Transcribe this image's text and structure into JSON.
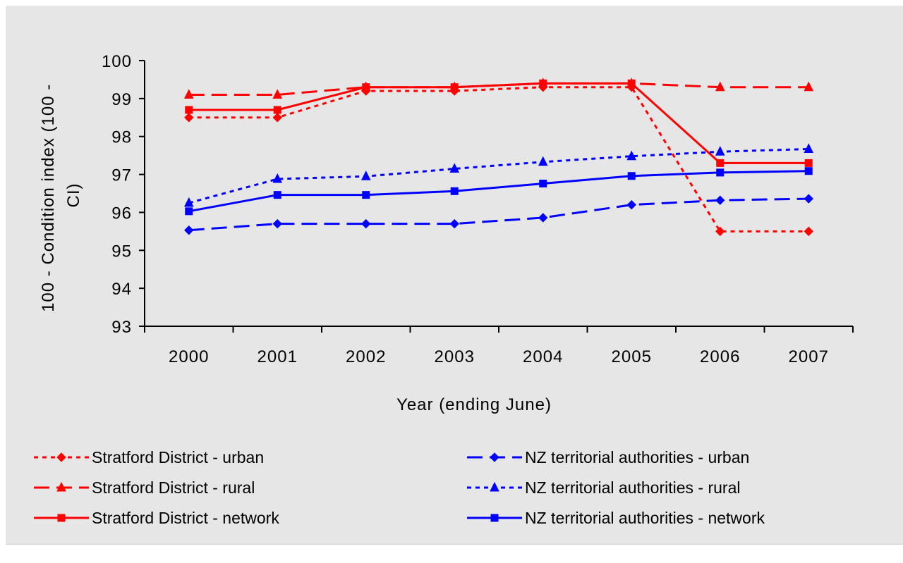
{
  "chart_data": {
    "type": "line",
    "title": "",
    "xlabel": "Year (ending June)",
    "ylabel_lines": [
      "100 - Condition index  (100 -",
      "CI)"
    ],
    "x": [
      "2000",
      "2001",
      "2002",
      "2003",
      "2004",
      "2005",
      "2006",
      "2007"
    ],
    "yticks": [
      93,
      94,
      95,
      96,
      97,
      98,
      99,
      100
    ],
    "ylim": [
      93,
      100
    ],
    "grid": false,
    "legend_position": "bottom",
    "series": [
      {
        "name": "Stratford District - urban",
        "color": "#ff0000",
        "dash": "dotted",
        "marker": "diamond",
        "values": [
          98.5,
          98.5,
          99.2,
          99.2,
          99.3,
          99.3,
          95.5,
          95.5
        ]
      },
      {
        "name": "Stratford District - rural",
        "color": "#ff0000",
        "dash": "long-dash",
        "marker": "triangle",
        "values": [
          99.1,
          99.1,
          99.3,
          99.3,
          99.4,
          99.4,
          99.3,
          99.3
        ]
      },
      {
        "name": "Stratford District - network",
        "color": "#ff0000",
        "dash": "solid",
        "marker": "square",
        "values": [
          98.7,
          98.7,
          99.3,
          99.3,
          99.4,
          99.4,
          97.3,
          97.3
        ]
      },
      {
        "name": "NZ territorial authorities - urban",
        "color": "#0000ff",
        "dash": "long-dash",
        "marker": "diamond",
        "values": [
          95.53,
          95.7,
          95.7,
          95.7,
          95.86,
          96.2,
          96.32,
          96.36
        ]
      },
      {
        "name": "NZ territorial authorities - rural",
        "color": "#0000ff",
        "dash": "dotted",
        "marker": "triangle",
        "values": [
          96.25,
          96.88,
          96.95,
          97.15,
          97.33,
          97.48,
          97.6,
          97.67
        ]
      },
      {
        "name": "NZ territorial authorities - network",
        "color": "#0000ff",
        "dash": "solid",
        "marker": "square",
        "values": [
          96.03,
          96.46,
          96.46,
          96.56,
          96.76,
          96.96,
          97.05,
          97.09
        ]
      }
    ]
  }
}
